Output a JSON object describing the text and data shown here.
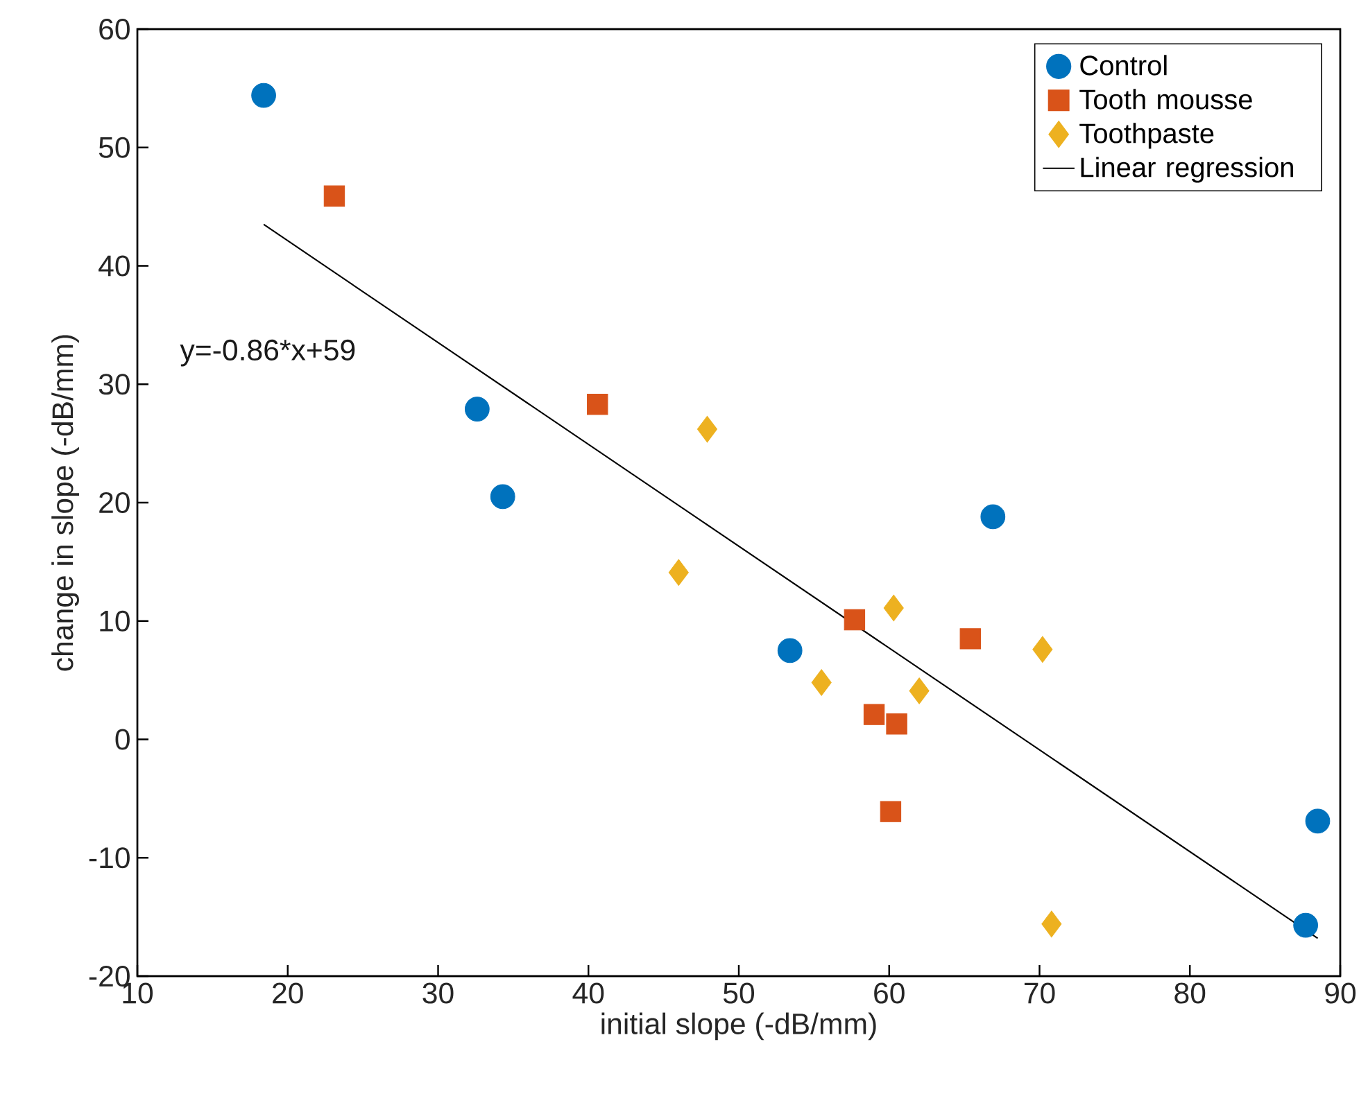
{
  "chart_data": {
    "type": "scatter",
    "xlabel": "initial slope (-dB/mm)",
    "ylabel": "change in slope (-dB/mm)",
    "xlim": [
      10,
      90
    ],
    "ylim": [
      -20,
      60
    ],
    "xticks": [
      10,
      20,
      30,
      40,
      50,
      60,
      70,
      80,
      90
    ],
    "yticks": [
      -20,
      -10,
      0,
      10,
      20,
      30,
      40,
      50,
      60
    ],
    "grid": false,
    "legend": "top right",
    "annotations": [
      "y=-0.86*x+59"
    ],
    "series": [
      {
        "name": "Control",
        "color": "#0072bd",
        "marker": "circle",
        "x": [
          18.4,
          32.6,
          34.3,
          53.4,
          66.9,
          87.7,
          88.5
        ],
        "values": [
          54.4,
          27.9,
          20.5,
          7.5,
          18.8,
          -15.7,
          -6.9
        ]
      },
      {
        "name": "Tooth mousse",
        "color": "#d95319",
        "marker": "square",
        "x": [
          23.1,
          40.6,
          57.7,
          59.0,
          60.5,
          60.1,
          65.4
        ],
        "values": [
          45.9,
          28.3,
          10.1,
          2.1,
          1.3,
          -6.1,
          8.5
        ]
      },
      {
        "name": "Toothpaste",
        "color": "#edb120",
        "marker": "diamond",
        "x": [
          47.9,
          46.0,
          60.3,
          55.5,
          62.0,
          70.2,
          70.8
        ],
        "values": [
          26.2,
          14.1,
          11.1,
          4.8,
          4.1,
          7.6,
          -15.6
        ]
      },
      {
        "name": "Linear regression",
        "type": "line",
        "color": "#000000",
        "marker": "none",
        "line_style": "solid",
        "x": [
          18.4,
          88.5
        ],
        "values": [
          43.5,
          -16.8
        ]
      }
    ]
  }
}
